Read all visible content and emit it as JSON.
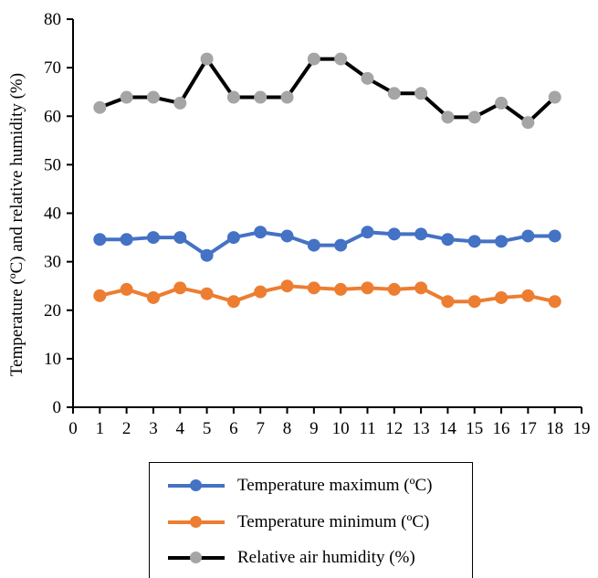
{
  "chart_data": {
    "type": "line",
    "title": "",
    "xlabel": "",
    "ylabel": "Temperature (ºC) and relative humidity (%)",
    "xlim": [
      0,
      19
    ],
    "ylim": [
      0,
      80
    ],
    "x_ticks": [
      0,
      1,
      2,
      3,
      4,
      5,
      6,
      7,
      8,
      9,
      10,
      11,
      12,
      13,
      14,
      15,
      16,
      17,
      18,
      19
    ],
    "y_ticks": [
      0,
      10,
      20,
      30,
      40,
      50,
      60,
      70,
      80
    ],
    "grid": false,
    "legend_position": "bottom",
    "x": [
      1,
      2,
      3,
      4,
      5,
      6,
      7,
      8,
      9,
      10,
      11,
      12,
      13,
      14,
      15,
      16,
      17,
      18
    ],
    "series": [
      {
        "name": "Temperature maximum (ºC)",
        "color": "#4472C4",
        "line_color": "#4472C4",
        "values": [
          34.6,
          34.6,
          35.0,
          35.0,
          31.3,
          35.0,
          36.1,
          35.3,
          33.4,
          33.4,
          36.1,
          35.7,
          35.7,
          34.6,
          34.2,
          34.2,
          35.3,
          35.3
        ]
      },
      {
        "name": "Temperature minimum (ºC)",
        "color": "#ED7D31",
        "line_color": "#ED7D31",
        "values": [
          23.0,
          24.3,
          22.6,
          24.6,
          23.4,
          21.8,
          23.8,
          25.0,
          24.6,
          24.3,
          24.6,
          24.3,
          24.6,
          21.8,
          21.8,
          22.6,
          23.0,
          21.8
        ]
      },
      {
        "name": "Relative air humidity (%)",
        "color": "#A5A5A5",
        "line_color": "#000000",
        "values": [
          61.8,
          63.9,
          63.9,
          62.7,
          71.8,
          63.9,
          63.9,
          63.9,
          71.8,
          71.8,
          67.8,
          64.7,
          64.7,
          59.8,
          59.8,
          62.7,
          58.7,
          63.9
        ]
      }
    ]
  }
}
